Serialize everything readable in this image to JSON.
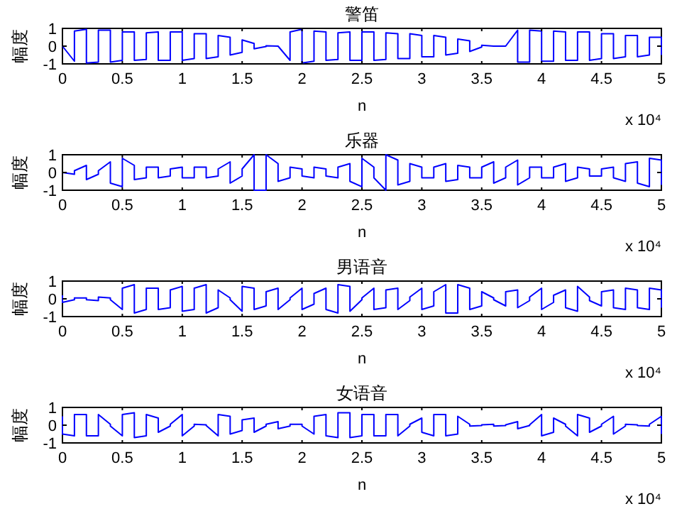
{
  "chart_data": [
    {
      "type": "line",
      "title": "警笛",
      "xlabel": "n",
      "ylabel": "幅度",
      "annotations": [
        "x 10⁴"
      ],
      "xlim": [
        0,
        5
      ],
      "ylim": [
        -1,
        1
      ],
      "yticks": [
        -1,
        0,
        1
      ],
      "xticks": [
        0,
        0.5,
        1,
        1.5,
        2,
        2.5,
        3,
        3.5,
        4,
        4.5,
        5
      ],
      "x": [
        0,
        0,
        0.1,
        0.1,
        0.2,
        0.2,
        0.3,
        0.3,
        0.4,
        0.4,
        0.5,
        0.5,
        0.6,
        0.6,
        0.7,
        0.7,
        0.8,
        0.8,
        0.9,
        0.9,
        1,
        1,
        1.1,
        1.1,
        1.2,
        1.2,
        1.3,
        1.3,
        1.4,
        1.4,
        1.5,
        1.5,
        1.6,
        1.6,
        1.7,
        1.7,
        1.8,
        1.8,
        1.9,
        1.9,
        2,
        2,
        2.1,
        2.1,
        2.2,
        2.2,
        2.3,
        2.3,
        2.4,
        2.4,
        2.5,
        2.5,
        2.6,
        2.6,
        2.7,
        2.7,
        2.8,
        2.8,
        2.9,
        2.9,
        3,
        3,
        3.1,
        3.1,
        3.2,
        3.2,
        3.3,
        3.3,
        3.4,
        3.4,
        3.5,
        3.5,
        3.6,
        3.6,
        3.7,
        3.7,
        3.8,
        3.8,
        3.9,
        3.9,
        4,
        4,
        4.1,
        4.1,
        4.2,
        4.2,
        4.3,
        4.3,
        4.4,
        4.4,
        4.5,
        4.5,
        4.6,
        4.6,
        4.7,
        4.7,
        4.8,
        4.8,
        4.9,
        4.9,
        5,
        5
      ],
      "series": [
        {
          "color": "#0000ff",
          "values": [
            0,
            0,
            -0.85,
            0.85,
            0.95,
            -0.95,
            -0.9,
            0.9,
            0.9,
            -0.9,
            -0.8,
            0.8,
            0.8,
            -0.8,
            -0.75,
            0.75,
            0.8,
            -0.8,
            -0.8,
            0.8,
            0.8,
            -0.8,
            -0.7,
            0.7,
            0.7,
            -0.7,
            -0.6,
            0.6,
            0.5,
            -0.5,
            -0.35,
            0.35,
            0.15,
            -0.15,
            -0.02,
            0.02,
            0,
            0,
            -0.8,
            0.8,
            0.95,
            -0.95,
            -0.85,
            0.85,
            0.8,
            -0.8,
            -0.75,
            0.75,
            0.8,
            -0.8,
            -0.8,
            0.8,
            0.8,
            -0.8,
            -0.75,
            0.75,
            0.7,
            -0.7,
            -0.7,
            0.7,
            0.6,
            -0.6,
            -0.6,
            0.6,
            0.5,
            -0.5,
            -0.4,
            0.4,
            0.3,
            -0.3,
            -0.05,
            0.05,
            0,
            0,
            0,
            0,
            0.9,
            -0.9,
            -0.9,
            0.9,
            0.85,
            -0.85,
            -0.85,
            0.85,
            0.8,
            -0.8,
            -0.8,
            0.8,
            0.8,
            -0.8,
            -0.7,
            0.7,
            0.7,
            -0.7,
            -0.6,
            0.6,
            0.6,
            -0.6,
            -0.5,
            0.5,
            0.5,
            -0.5
          ]
        }
      ]
    },
    {
      "type": "line",
      "title": "乐器",
      "xlabel": "n",
      "ylabel": "幅度",
      "annotations": [
        "x 10⁴"
      ],
      "xlim": [
        0,
        5
      ],
      "ylim": [
        -1,
        1
      ],
      "yticks": [
        -1,
        0,
        1
      ],
      "xticks": [
        0,
        0.5,
        1,
        1.5,
        2,
        2.5,
        3,
        3.5,
        4,
        4.5,
        5
      ],
      "x": [
        0,
        0,
        0.1,
        0.1,
        0.2,
        0.2,
        0.3,
        0.3,
        0.4,
        0.4,
        0.5,
        0.5,
        0.6,
        0.6,
        0.7,
        0.7,
        0.8,
        0.8,
        0.9,
        0.9,
        1,
        1,
        1.1,
        1.1,
        1.2,
        1.2,
        1.3,
        1.3,
        1.4,
        1.4,
        1.5,
        1.5,
        1.6,
        1.6,
        1.7,
        1.7,
        1.8,
        1.8,
        1.9,
        1.9,
        2,
        2,
        2.1,
        2.1,
        2.2,
        2.2,
        2.3,
        2.3,
        2.4,
        2.4,
        2.5,
        2.5,
        2.6,
        2.6,
        2.7,
        2.7,
        2.8,
        2.8,
        2.9,
        2.9,
        3,
        3,
        3.1,
        3.1,
        3.2,
        3.2,
        3.3,
        3.3,
        3.4,
        3.4,
        3.5,
        3.5,
        3.6,
        3.6,
        3.7,
        3.7,
        3.8,
        3.8,
        3.9,
        3.9,
        4,
        4,
        4.1,
        4.1,
        4.2,
        4.2,
        4.3,
        4.3,
        4.4,
        4.4,
        4.5,
        4.5,
        4.6,
        4.6,
        4.7,
        4.7,
        4.8,
        4.8,
        4.9,
        4.9,
        5,
        5
      ],
      "series": [
        {
          "color": "#0000ff",
          "values": [
            0,
            0,
            -0.1,
            0.1,
            0.4,
            -0.4,
            -0.1,
            0.1,
            0.6,
            -0.6,
            -0.8,
            0.8,
            0.4,
            -0.4,
            -0.3,
            0.3,
            0.3,
            -0.3,
            -0.2,
            0.2,
            0.3,
            -0.3,
            -0.3,
            0.3,
            0.3,
            -0.3,
            -0.2,
            0.2,
            0.6,
            -0.6,
            -0.2,
            0.2,
            1,
            -1,
            -1,
            1,
            0.5,
            -0.5,
            -0.3,
            0.3,
            0.2,
            -0.2,
            -0.3,
            0.3,
            0.2,
            -0.2,
            -0.3,
            0.3,
            0.5,
            -0.5,
            -0.8,
            0.8,
            0.3,
            -0.3,
            -1,
            1,
            0.7,
            -0.7,
            -0.5,
            0.5,
            0.3,
            -0.3,
            -0.3,
            0.3,
            0.5,
            -0.5,
            -0.4,
            0.4,
            0.3,
            -0.3,
            -0.3,
            0.3,
            0.6,
            -0.6,
            -0.3,
            0.3,
            0.7,
            -0.7,
            -0.3,
            0.3,
            0.3,
            -0.3,
            -0.3,
            0.3,
            0.5,
            -0.5,
            -0.3,
            0.3,
            0.2,
            -0.2,
            -0.2,
            0.2,
            0.3,
            -0.3,
            -0.5,
            0.5,
            0.6,
            -0.6,
            -0.8,
            0.8,
            0.7,
            -0.7
          ]
        }
      ]
    },
    {
      "type": "line",
      "title": "男语音",
      "xlabel": "n",
      "ylabel": "幅度",
      "annotations": [
        "x 10⁴"
      ],
      "xlim": [
        0,
        5
      ],
      "ylim": [
        -1,
        1
      ],
      "yticks": [
        -1,
        0,
        1
      ],
      "xticks": [
        0,
        0.5,
        1,
        1.5,
        2,
        2.5,
        3,
        3.5,
        4,
        4.5,
        5
      ],
      "x": [
        0,
        0,
        0.1,
        0.1,
        0.2,
        0.2,
        0.3,
        0.3,
        0.4,
        0.4,
        0.5,
        0.5,
        0.6,
        0.6,
        0.7,
        0.7,
        0.8,
        0.8,
        0.9,
        0.9,
        1,
        1,
        1.1,
        1.1,
        1.2,
        1.2,
        1.3,
        1.3,
        1.4,
        1.4,
        1.5,
        1.5,
        1.6,
        1.6,
        1.7,
        1.7,
        1.8,
        1.8,
        1.9,
        1.9,
        2,
        2,
        2.1,
        2.1,
        2.2,
        2.2,
        2.3,
        2.3,
        2.4,
        2.4,
        2.5,
        2.5,
        2.6,
        2.6,
        2.7,
        2.7,
        2.8,
        2.8,
        2.9,
        2.9,
        3,
        3,
        3.1,
        3.1,
        3.2,
        3.2,
        3.3,
        3.3,
        3.4,
        3.4,
        3.5,
        3.5,
        3.6,
        3.6,
        3.7,
        3.7,
        3.8,
        3.8,
        3.9,
        3.9,
        4,
        4,
        4.1,
        4.1,
        4.2,
        4.2,
        4.3,
        4.3,
        4.4,
        4.4,
        4.5,
        4.5,
        4.6,
        4.6,
        4.7,
        4.7,
        4.8,
        4.8,
        4.9,
        4.9,
        5,
        5
      ],
      "series": [
        {
          "color": "#0000ff",
          "values": [
            0.2,
            -0.2,
            -0.05,
            0.05,
            0.05,
            -0.05,
            -0.1,
            0.1,
            0.05,
            -0.05,
            -0.6,
            0.6,
            0.8,
            -0.8,
            -0.6,
            0.6,
            0.6,
            -0.6,
            -0.5,
            0.5,
            0.7,
            -0.7,
            -0.6,
            0.6,
            0.8,
            -0.8,
            -0.5,
            0.5,
            0.05,
            -0.05,
            -0.7,
            0.7,
            0.6,
            -0.6,
            -0.4,
            0.4,
            0.6,
            -0.6,
            -0.05,
            0.05,
            0.6,
            -0.6,
            -0.3,
            0.3,
            0.6,
            -0.6,
            -0.8,
            0.8,
            0.7,
            -0.7,
            -0.05,
            0.05,
            0.6,
            -0.6,
            -0.5,
            0.5,
            0.6,
            -0.6,
            -0.1,
            0.1,
            0.6,
            -0.6,
            -0.4,
            0.4,
            0.8,
            -0.8,
            -0.8,
            0.8,
            0.6,
            -0.6,
            -0.4,
            0.4,
            0.05,
            -0.05,
            -0.4,
            0.4,
            0.5,
            -0.5,
            -0.1,
            0.1,
            0.6,
            -0.6,
            -0.2,
            0.2,
            0.5,
            -0.5,
            -0.7,
            0.7,
            0.1,
            -0.1,
            -0.4,
            0.4,
            0.5,
            -0.5,
            -0.6,
            0.6,
            0.5,
            -0.5,
            -0.6,
            0.6,
            0.5,
            -0.5
          ]
        }
      ]
    },
    {
      "type": "line",
      "title": "女语音",
      "xlabel": "n",
      "ylabel": "幅度",
      "annotations": [
        "x 10⁴"
      ],
      "xlim": [
        0,
        5
      ],
      "ylim": [
        -1,
        1
      ],
      "yticks": [
        -1,
        0,
        1
      ],
      "xticks": [
        0,
        0.5,
        1,
        1.5,
        2,
        2.5,
        3,
        3.5,
        4,
        4.5,
        5
      ],
      "x": [
        0,
        0,
        0.1,
        0.1,
        0.2,
        0.2,
        0.3,
        0.3,
        0.4,
        0.4,
        0.5,
        0.5,
        0.6,
        0.6,
        0.7,
        0.7,
        0.8,
        0.8,
        0.9,
        0.9,
        1,
        1,
        1.1,
        1.1,
        1.2,
        1.2,
        1.3,
        1.3,
        1.4,
        1.4,
        1.5,
        1.5,
        1.6,
        1.6,
        1.7,
        1.7,
        1.8,
        1.8,
        1.9,
        1.9,
        2,
        2,
        2.1,
        2.1,
        2.2,
        2.2,
        2.3,
        2.3,
        2.4,
        2.4,
        2.5,
        2.5,
        2.6,
        2.6,
        2.7,
        2.7,
        2.8,
        2.8,
        2.9,
        2.9,
        3,
        3,
        3.1,
        3.1,
        3.2,
        3.2,
        3.3,
        3.3,
        3.4,
        3.4,
        3.5,
        3.5,
        3.6,
        3.6,
        3.7,
        3.7,
        3.8,
        3.8,
        3.9,
        3.9,
        4,
        4,
        4.1,
        4.1,
        4.2,
        4.2,
        4.3,
        4.3,
        4.4,
        4.4,
        4.5,
        4.5,
        4.6,
        4.6,
        4.7,
        4.7,
        4.8,
        4.8,
        4.9,
        4.9,
        5,
        5
      ],
      "series": [
        {
          "color": "#0000ff",
          "values": [
            0.5,
            -0.5,
            -0.6,
            0.6,
            0.6,
            -0.6,
            -0.6,
            0.6,
            0.05,
            -0.05,
            -0.6,
            0.6,
            0.7,
            -0.7,
            -0.6,
            0.6,
            0.4,
            -0.4,
            -0.05,
            0.05,
            0.6,
            -0.6,
            -0.05,
            0.05,
            0.02,
            -0.02,
            -0.6,
            0.6,
            0.5,
            -0.5,
            -0.3,
            0.3,
            0.4,
            -0.4,
            -0.05,
            0.05,
            0.2,
            -0.2,
            -0.05,
            0.05,
            0.05,
            -0.05,
            -0.5,
            0.5,
            0.6,
            -0.6,
            -0.7,
            0.7,
            0.7,
            -0.7,
            -0.6,
            0.6,
            0.6,
            -0.6,
            -0.6,
            0.6,
            0.6,
            -0.6,
            -0.05,
            0.05,
            0.4,
            -0.4,
            -0.6,
            0.6,
            0.6,
            -0.6,
            -0.5,
            0.5,
            0.05,
            -0.05,
            -0.02,
            0.02,
            0.05,
            -0.05,
            -0.02,
            0.02,
            0.2,
            -0.2,
            -0.02,
            0.02,
            0.6,
            -0.6,
            -0.4,
            0.4,
            0.05,
            -0.05,
            -0.6,
            0.6,
            0.4,
            -0.4,
            -0.05,
            0.05,
            0.5,
            -0.5,
            -0.05,
            0.05,
            0.02,
            -0.02,
            -0.05,
            0.05,
            0.5,
            -0.5
          ]
        }
      ]
    }
  ]
}
